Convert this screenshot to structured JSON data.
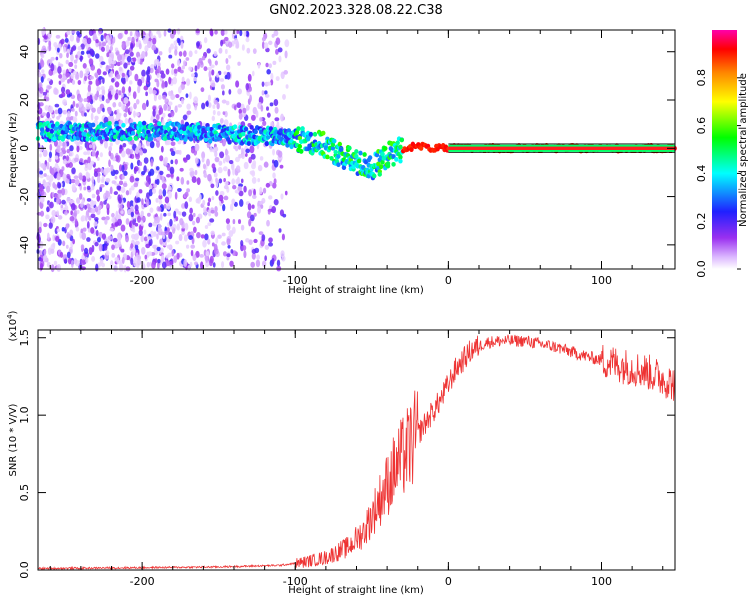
{
  "title": "GN02.2023.328.08.22.C38",
  "colors": {
    "snr_line": "#ee3333",
    "axis": "#000000"
  },
  "spectrogram": {
    "type": "heatmap",
    "xlabel": "Height of straight line (km)",
    "ylabel": "Frequency (Hz)",
    "xlim": [
      -268,
      148
    ],
    "ylim": [
      -50,
      49
    ],
    "xticks": [
      -200,
      -100,
      0,
      100
    ],
    "xtick_labels": [
      "-200",
      "-100",
      "0",
      "100"
    ],
    "yticks": [
      -40,
      -20,
      0,
      20,
      40
    ],
    "ytick_labels": [
      "-40",
      "-20",
      "0",
      "20",
      "40"
    ],
    "colorbar": {
      "label": "Normalized spectral amplitude",
      "range": [
        0,
        1
      ],
      "ticks": [
        0.0,
        0.2,
        0.4,
        0.6,
        0.8
      ],
      "tick_labels": [
        "0.0",
        "0.2",
        "0.4",
        "0.6",
        "0.8"
      ]
    },
    "ridge": {
      "x": [
        -268,
        -220,
        -180,
        -150,
        -120,
        -100,
        -90,
        -80,
        -70,
        -60,
        -50,
        -45,
        -40,
        -30,
        -20,
        -10,
        0,
        50,
        100,
        148
      ],
      "y": [
        7,
        7,
        7,
        6,
        5,
        4,
        3,
        1,
        -3,
        -6,
        -8,
        -6,
        -3,
        0,
        1,
        0,
        0,
        0,
        0,
        0
      ]
    }
  },
  "snr": {
    "type": "line",
    "xlabel": "Height of straight line (km)",
    "ylabel": "SNR (10 * V/V)",
    "scale_label": "(x10",
    "scale_exp": "4",
    "scale_close": ")",
    "xlim": [
      -268,
      148
    ],
    "ylim": [
      0,
      1.55
    ],
    "xticks": [
      -200,
      -100,
      0,
      100
    ],
    "xtick_labels": [
      "-200",
      "-100",
      "0",
      "100"
    ],
    "yticks": [
      0,
      0.5,
      1.0,
      1.5
    ],
    "ytick_labels": [
      "0.0",
      "0.5",
      "1.0",
      "1.5"
    ],
    "envelope": {
      "x": [
        -268,
        -200,
        -150,
        -110,
        -95,
        -80,
        -65,
        -55,
        -45,
        -35,
        -25,
        -15,
        -5,
        5,
        15,
        25,
        35,
        50,
        70,
        90,
        110,
        130,
        148
      ],
      "y": [
        0.01,
        0.015,
        0.02,
        0.03,
        0.05,
        0.08,
        0.15,
        0.25,
        0.45,
        0.65,
        0.8,
        0.95,
        1.1,
        1.3,
        1.42,
        1.47,
        1.48,
        1.48,
        1.44,
        1.38,
        1.33,
        1.28,
        1.2
      ]
    }
  }
}
